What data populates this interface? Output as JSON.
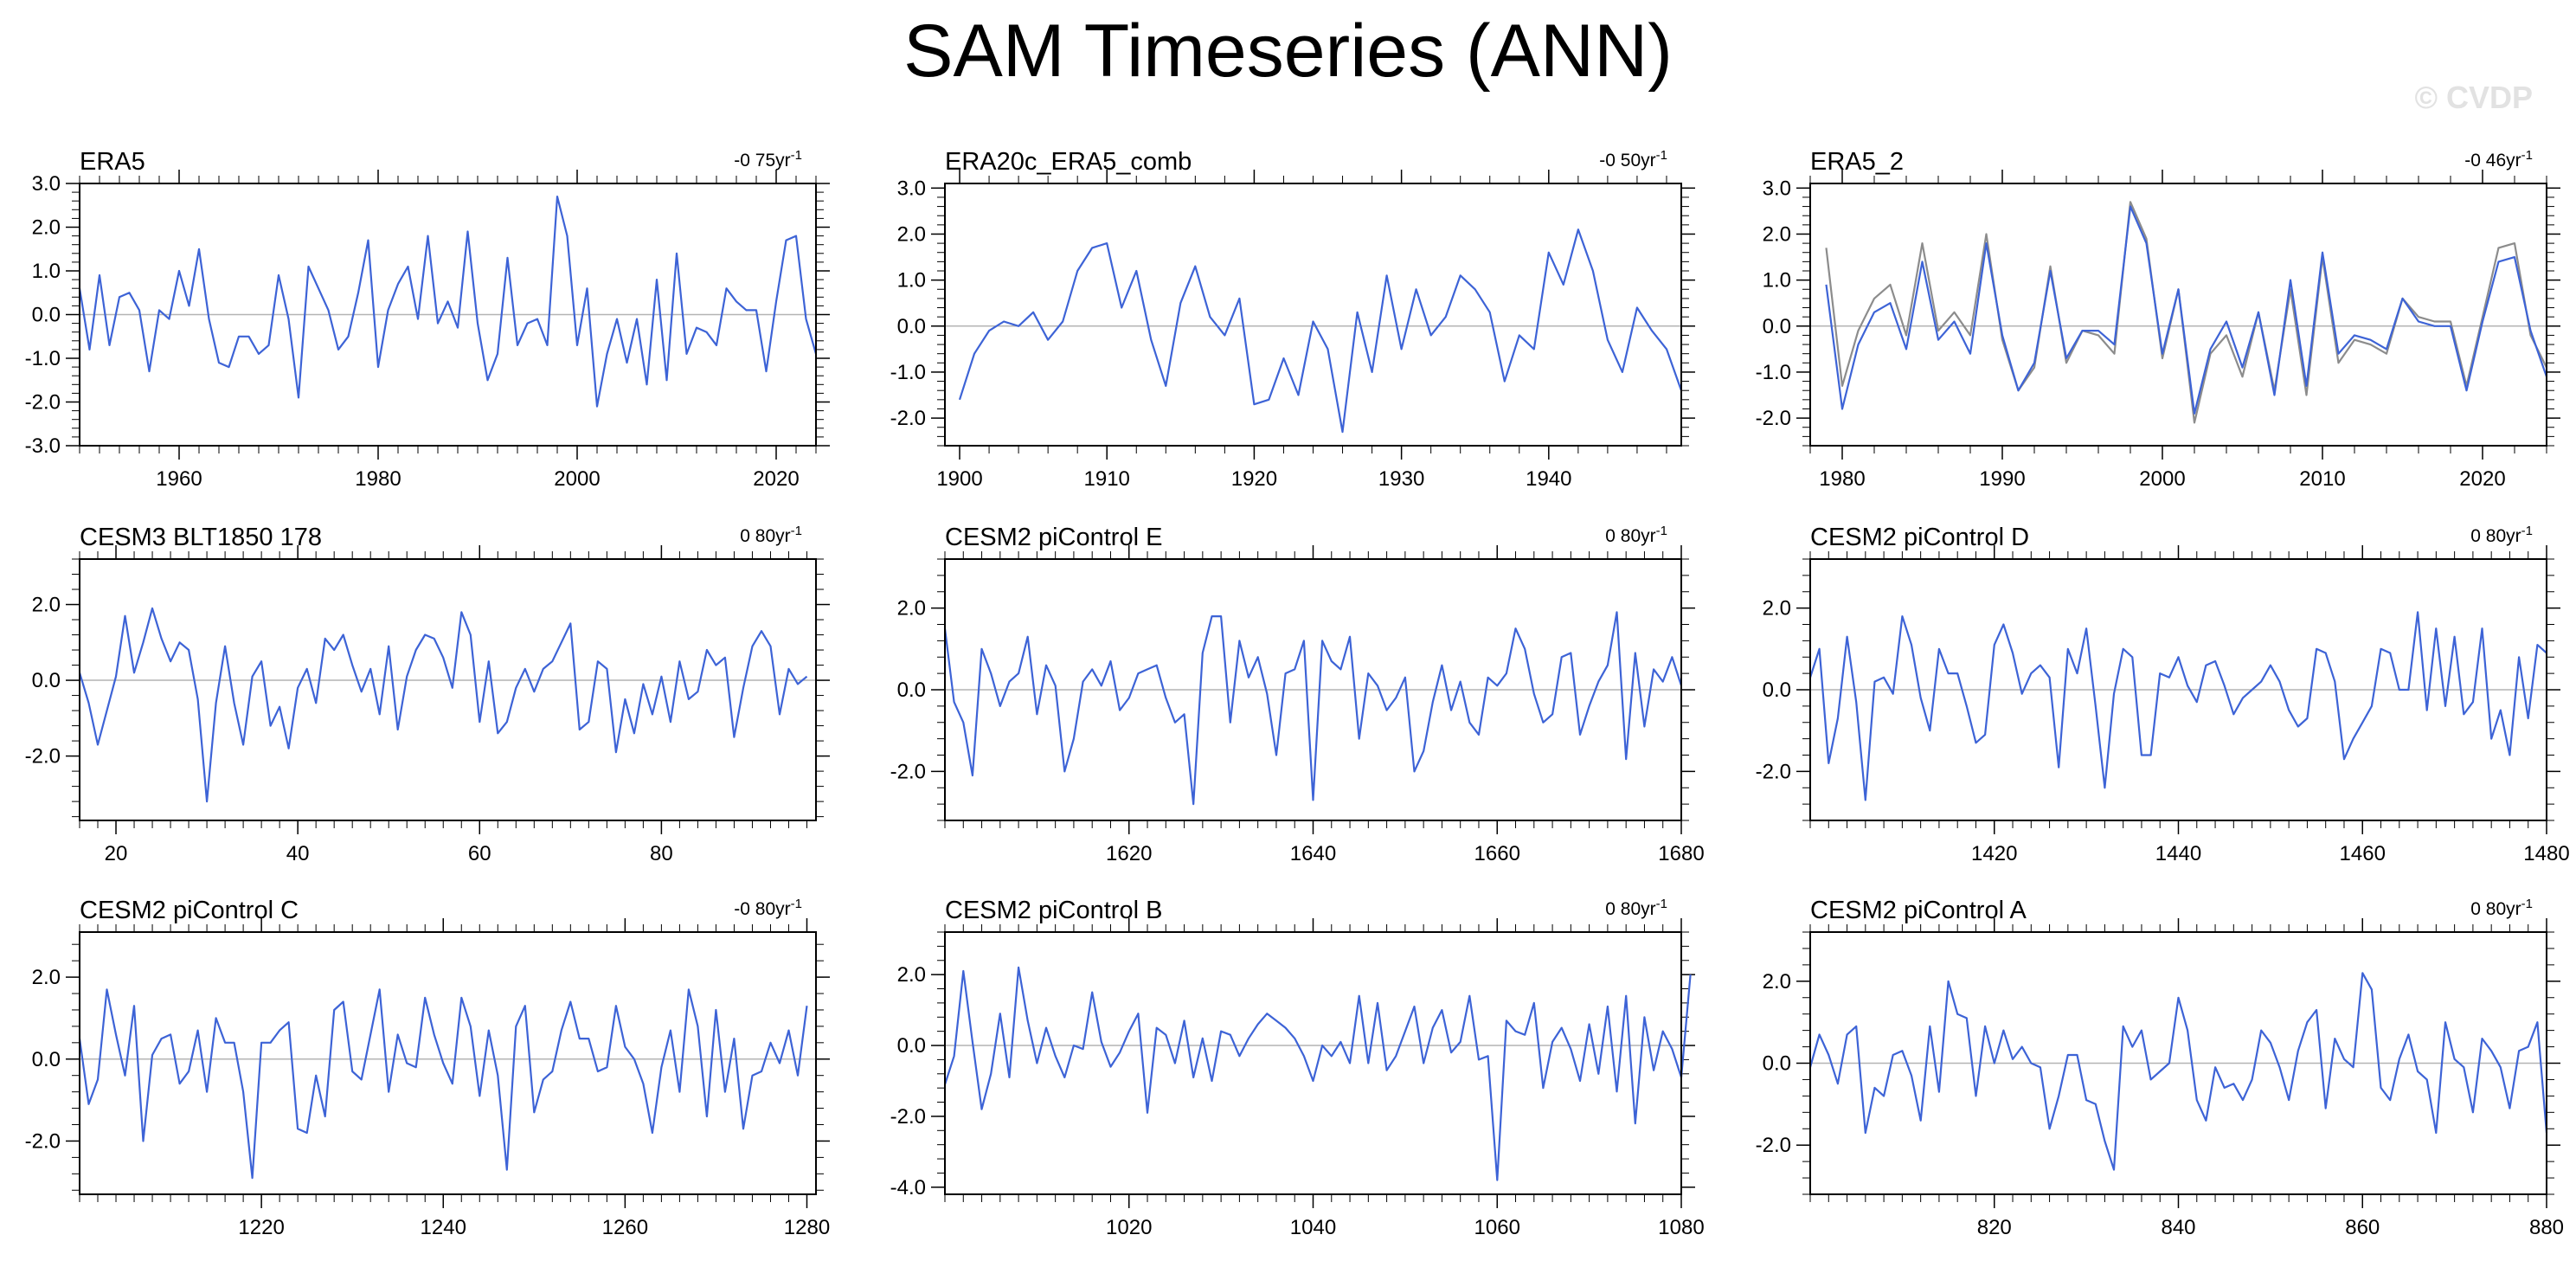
{
  "title": "SAM Timeseries (ANN)",
  "watermark": "© CVDP",
  "colors": {
    "series": "#3d63d6",
    "series2": "#8c8c8c",
    "zero_line": "#b4b4b4",
    "axis": "#000000"
  },
  "chart_data": [
    {
      "type": "line",
      "title": "ERA5",
      "trend": "-0 75yr",
      "xlim": [
        1950,
        2024
      ],
      "ylim": [
        -3,
        3
      ],
      "xticks": [
        1960,
        1980,
        2000,
        2020
      ],
      "yticks": [
        -3,
        -2,
        -1,
        0,
        1,
        2,
        3
      ],
      "ytick_labels": [
        "-3.0",
        "-2.0",
        "-1.0",
        "0.0",
        "1.0",
        "2.0",
        "3.0"
      ],
      "series": [
        {
          "x0": 1950,
          "values": [
            0.6,
            -0.8,
            0.9,
            -0.7,
            0.4,
            0.5,
            0.1,
            -1.3,
            0.1,
            -0.1,
            1.0,
            0.2,
            1.5,
            -0.1,
            -1.1,
            -1.2,
            -0.5,
            -0.5,
            -0.9,
            -0.7,
            0.9,
            -0.1,
            -1.9,
            1.1,
            0.6,
            0.1,
            -0.8,
            -0.5,
            0.5,
            1.7,
            -1.2,
            0.1,
            0.7,
            1.1,
            -0.1,
            1.8,
            -0.2,
            0.3,
            -0.3,
            1.9,
            -0.2,
            -1.5,
            -0.9,
            1.3,
            -0.7,
            -0.2,
            -0.1,
            -0.7,
            2.7,
            1.8,
            -0.7,
            0.6,
            -2.1,
            -0.9,
            -0.1,
            -1.1,
            -0.1,
            -1.6,
            0.8,
            -1.5,
            1.4,
            -0.9,
            -0.3,
            -0.4,
            -0.7,
            0.6,
            0.3,
            0.1,
            0.1,
            -1.3,
            0.3,
            1.7,
            1.8,
            -0.1,
            -0.9
          ]
        }
      ]
    },
    {
      "type": "line",
      "title": "ERA20c_ERA5_comb",
      "trend": "-0 50yr",
      "xlim": [
        1899,
        1949
      ],
      "ylim": [
        -2.6,
        3.1
      ],
      "xticks": [
        1900,
        1910,
        1920,
        1930,
        1940
      ],
      "yticks": [
        -2,
        -1,
        0,
        1,
        2,
        3
      ],
      "ytick_labels": [
        "-2.0",
        "-1.0",
        "0.0",
        "1.0",
        "2.0",
        "3.0"
      ],
      "series": [
        {
          "x0": 1900,
          "values": [
            -1.6,
            -0.6,
            -0.1,
            0.1,
            0.0,
            0.3,
            -0.3,
            0.1,
            1.2,
            1.7,
            1.8,
            0.4,
            1.2,
            -0.3,
            -1.3,
            0.5,
            1.3,
            0.2,
            -0.2,
            0.6,
            -1.7,
            -1.6,
            -0.7,
            -1.5,
            0.1,
            -0.5,
            -2.3,
            0.3,
            -1.0,
            1.1,
            -0.5,
            0.8,
            -0.2,
            0.2,
            1.1,
            0.8,
            0.3,
            -1.2,
            -0.2,
            -0.5,
            1.6,
            0.9,
            2.1,
            1.2,
            -0.3,
            -1.0,
            0.4,
            -0.1,
            -0.5,
            -1.4
          ]
        }
      ]
    },
    {
      "type": "line",
      "title": "ERA5_2",
      "trend": "-0 46yr",
      "xlim": [
        1978,
        2024
      ],
      "ylim": [
        -2.6,
        3.1
      ],
      "xticks": [
        1980,
        1990,
        2000,
        2010,
        2020
      ],
      "yticks": [
        -2,
        -1,
        0,
        1,
        2,
        3
      ],
      "ytick_labels": [
        "-2.0",
        "-1.0",
        "0.0",
        "1.0",
        "2.0",
        "3.0"
      ],
      "series": [
        {
          "x0": 1979,
          "values": [
            1.7,
            -1.3,
            -0.1,
            0.6,
            0.9,
            -0.2,
            1.8,
            -0.1,
            0.3,
            -0.2,
            2.0,
            -0.3,
            -1.4,
            -0.9,
            1.3,
            -0.8,
            -0.1,
            -0.2,
            -0.6,
            2.7,
            1.9,
            -0.7,
            0.8,
            -2.1,
            -0.6,
            -0.2,
            -1.1,
            0.3,
            -1.4,
            0.8,
            -1.5,
            1.5,
            -0.8,
            -0.3,
            -0.4,
            -0.6,
            0.6,
            0.2,
            0.1,
            0.1,
            -1.3,
            0.2,
            1.7,
            1.8,
            -0.2,
            -0.9
          ]
        },
        {
          "x0": 1979,
          "values": [
            0.9,
            -1.8,
            -0.4,
            0.3,
            0.5,
            -0.5,
            1.4,
            -0.3,
            0.1,
            -0.6,
            1.8,
            -0.2,
            -1.4,
            -0.8,
            1.2,
            -0.7,
            -0.1,
            -0.1,
            -0.4,
            2.6,
            1.8,
            -0.6,
            0.8,
            -1.9,
            -0.5,
            0.1,
            -0.9,
            0.3,
            -1.5,
            1.0,
            -1.3,
            1.6,
            -0.6,
            -0.2,
            -0.3,
            -0.5,
            0.6,
            0.1,
            0.0,
            0.0,
            -1.4,
            0.1,
            1.4,
            1.5,
            -0.1,
            -1.1
          ]
        }
      ]
    },
    {
      "type": "line",
      "title": "CESM3 BLT1850 178",
      "trend": "0 80yr",
      "xlim": [
        16,
        97
      ],
      "ylim": [
        -3.7,
        3.2
      ],
      "xticks": [
        20,
        40,
        60,
        80
      ],
      "yticks": [
        -2,
        0,
        2
      ],
      "ytick_labels": [
        "-2.0",
        "0.0",
        "2.0"
      ],
      "series": [
        {
          "x0": 16,
          "values": [
            0.2,
            -0.6,
            -1.7,
            -0.8,
            0.1,
            1.7,
            0.2,
            1.0,
            1.9,
            1.1,
            0.5,
            1.0,
            0.8,
            -0.5,
            -3.2,
            -0.6,
            0.9,
            -0.6,
            -1.7,
            0.1,
            0.5,
            -1.2,
            -0.7,
            -1.8,
            -0.2,
            0.3,
            -0.6,
            1.1,
            0.8,
            1.2,
            0.4,
            -0.3,
            0.3,
            -0.9,
            0.9,
            -1.3,
            0.1,
            0.8,
            1.2,
            1.1,
            0.6,
            -0.2,
            1.8,
            1.2,
            -1.1,
            0.5,
            -1.4,
            -1.1,
            -0.2,
            0.3,
            -0.3,
            0.3,
            0.5,
            1.0,
            1.5,
            -1.3,
            -1.1,
            0.5,
            0.3,
            -1.9,
            -0.5,
            -1.4,
            -0.1,
            -0.9,
            0.1,
            -1.1,
            0.5,
            -0.5,
            -0.3,
            0.8,
            0.4,
            0.6,
            -1.5,
            -0.2,
            0.9,
            1.3,
            0.9,
            -0.9,
            0.3,
            -0.1,
            0.1
          ]
        }
      ]
    },
    {
      "type": "line",
      "title": "CESM2 piControl E",
      "trend": "0 80yr",
      "xlim": [
        1600,
        1680
      ],
      "ylim": [
        -3.2,
        3.2
      ],
      "xticks": [
        1620,
        1640,
        1660,
        1680
      ],
      "yticks": [
        -2,
        0,
        2
      ],
      "ytick_labels": [
        "-2.0",
        "0.0",
        "2.0"
      ],
      "series": [
        {
          "x0": 1600,
          "values": [
            1.5,
            -0.3,
            -0.8,
            -2.1,
            1.0,
            0.4,
            -0.4,
            0.2,
            0.4,
            1.3,
            -0.6,
            0.6,
            0.1,
            -2.0,
            -1.2,
            0.2,
            0.5,
            0.1,
            0.7,
            -0.5,
            -0.2,
            0.4,
            0.5,
            0.6,
            -0.2,
            -0.8,
            -0.6,
            -2.8,
            0.9,
            1.8,
            1.8,
            -0.8,
            1.2,
            0.3,
            0.8,
            -0.1,
            -1.6,
            0.4,
            0.5,
            1.2,
            -2.7,
            1.2,
            0.7,
            0.5,
            1.3,
            -1.2,
            0.4,
            0.1,
            -0.5,
            -0.2,
            0.3,
            -2.0,
            -1.5,
            -0.3,
            0.6,
            -0.5,
            0.2,
            -0.8,
            -1.1,
            0.3,
            0.1,
            0.4,
            1.5,
            1.0,
            -0.1,
            -0.8,
            -0.6,
            0.8,
            0.9,
            -1.1,
            -0.4,
            0.2,
            0.6,
            1.9,
            -1.7,
            0.9,
            -0.9,
            0.5,
            0.2,
            0.8,
            0.1
          ]
        }
      ]
    },
    {
      "type": "line",
      "title": "CESM2 piControl D",
      "trend": "0 80yr",
      "xlim": [
        1400,
        1480
      ],
      "ylim": [
        -3.2,
        3.2
      ],
      "xticks": [
        1420,
        1440,
        1460,
        1480
      ],
      "yticks": [
        -2,
        0,
        2
      ],
      "ytick_labels": [
        "-2.0",
        "0.0",
        "2.0"
      ],
      "series": [
        {
          "x0": 1400,
          "values": [
            0.3,
            1.0,
            -1.8,
            -0.7,
            1.3,
            -0.3,
            -2.7,
            0.2,
            0.3,
            -0.1,
            1.8,
            1.1,
            -0.2,
            -1.0,
            1.0,
            0.4,
            0.4,
            -0.4,
            -1.3,
            -1.1,
            1.1,
            1.6,
            0.9,
            -0.1,
            0.4,
            0.6,
            0.3,
            -1.9,
            1.0,
            0.4,
            1.5,
            -0.4,
            -2.4,
            -0.1,
            1.0,
            0.8,
            -1.6,
            -1.6,
            0.4,
            0.3,
            0.8,
            0.1,
            -0.3,
            0.6,
            0.7,
            0.1,
            -0.6,
            -0.2,
            0.0,
            0.2,
            0.6,
            0.2,
            -0.5,
            -0.9,
            -0.7,
            1.0,
            0.9,
            0.2,
            -1.7,
            -1.2,
            -0.8,
            -0.4,
            1.0,
            0.9,
            0.0,
            0.0,
            1.9,
            -0.5,
            1.5,
            -0.4,
            1.3,
            -0.6,
            -0.3,
            1.5,
            -1.2,
            -0.5,
            -1.6,
            0.8,
            -0.7,
            1.1,
            0.9
          ]
        }
      ]
    },
    {
      "type": "line",
      "title": "CESM2 piControl C",
      "trend": "-0 80yr",
      "xlim": [
        1200,
        1281
      ],
      "ylim": [
        -3.3,
        3.1
      ],
      "xticks": [
        1220,
        1240,
        1260,
        1280
      ],
      "yticks": [
        -2,
        0,
        2
      ],
      "ytick_labels": [
        "-2.0",
        "0.0",
        "2.0"
      ],
      "series": [
        {
          "x0": 1200,
          "values": [
            0.5,
            -1.1,
            -0.5,
            1.7,
            0.6,
            -0.4,
            1.3,
            -2.0,
            0.1,
            0.5,
            0.6,
            -0.6,
            -0.3,
            0.7,
            -0.8,
            1.0,
            0.4,
            0.4,
            -0.8,
            -2.9,
            0.4,
            0.4,
            0.7,
            0.9,
            -1.7,
            -1.8,
            -0.4,
            -1.4,
            1.2,
            1.4,
            -0.3,
            -0.5,
            0.6,
            1.7,
            -0.8,
            0.6,
            -0.1,
            -0.2,
            1.5,
            0.6,
            -0.1,
            -0.6,
            1.5,
            0.8,
            -0.9,
            0.7,
            -0.4,
            -2.7,
            0.8,
            1.3,
            -1.3,
            -0.5,
            -0.3,
            0.7,
            1.4,
            0.5,
            0.5,
            -0.3,
            -0.2,
            1.3,
            0.3,
            0.0,
            -0.6,
            -1.8,
            -0.2,
            0.7,
            -0.8,
            1.7,
            0.8,
            -1.4,
            1.2,
            -0.8,
            0.5,
            -1.7,
            -0.4,
            -0.3,
            0.4,
            -0.1,
            0.7,
            -0.4,
            1.3
          ]
        }
      ]
    },
    {
      "type": "line",
      "title": "CESM2 piControl B",
      "trend": "0 80yr",
      "xlim": [
        1000,
        1080
      ],
      "ylim": [
        -4.2,
        3.2
      ],
      "xticks": [
        1020,
        1040,
        1060,
        1080
      ],
      "yticks": [
        -4,
        -2,
        0,
        2
      ],
      "ytick_labels": [
        "-4.0",
        "-2.0",
        "0.0",
        "2.0"
      ],
      "series": [
        {
          "x0": 1000,
          "values": [
            -1.1,
            -0.3,
            2.1,
            0.1,
            -1.8,
            -0.8,
            0.9,
            -0.9,
            2.2,
            0.7,
            -0.5,
            0.5,
            -0.3,
            -0.9,
            0.0,
            -0.1,
            1.5,
            0.1,
            -0.6,
            -0.2,
            0.4,
            0.9,
            -1.9,
            0.5,
            0.3,
            -0.5,
            0.7,
            -0.9,
            0.2,
            -1.0,
            0.4,
            0.3,
            -0.3,
            0.2,
            0.6,
            0.9,
            0.7,
            0.5,
            0.2,
            -0.3,
            -1.0,
            0.0,
            -0.3,
            0.1,
            -0.5,
            1.4,
            -0.5,
            1.2,
            -0.7,
            -0.3,
            0.4,
            1.1,
            -0.5,
            0.5,
            1.0,
            -0.2,
            0.1,
            1.4,
            -0.4,
            -0.3,
            -3.8,
            0.7,
            0.4,
            0.3,
            1.2,
            -1.2,
            0.1,
            0.5,
            -0.1,
            -1.0,
            0.6,
            -0.8,
            1.1,
            -1.3,
            1.4,
            -2.2,
            0.8,
            -0.7,
            0.4,
            -0.1,
            -0.9,
            2.0
          ]
        }
      ]
    },
    {
      "type": "line",
      "title": "CESM2 piControl A",
      "trend": "0 80yr",
      "xlim": [
        800,
        880
      ],
      "ylim": [
        -3.2,
        3.2
      ],
      "xticks": [
        820,
        840,
        860,
        880
      ],
      "yticks": [
        -2,
        0,
        2
      ],
      "ytick_labels": [
        "-2.0",
        "0.0",
        "2.0"
      ],
      "series": [
        {
          "x0": 800,
          "values": [
            -0.1,
            0.7,
            0.2,
            -0.5,
            0.7,
            0.9,
            -1.7,
            -0.6,
            -0.8,
            0.2,
            0.3,
            -0.3,
            -1.4,
            0.9,
            -0.7,
            2.0,
            1.2,
            1.1,
            -0.8,
            0.9,
            0.0,
            0.8,
            0.1,
            0.4,
            0.0,
            -0.1,
            -1.6,
            -0.8,
            0.2,
            0.2,
            -0.9,
            -1.0,
            -1.9,
            -2.6,
            0.9,
            0.4,
            0.8,
            -0.4,
            -0.2,
            0.0,
            1.6,
            0.8,
            -0.9,
            -1.4,
            -0.1,
            -0.6,
            -0.5,
            -0.9,
            -0.4,
            0.8,
            0.5,
            -0.1,
            -0.9,
            0.3,
            1.0,
            1.3,
            -1.1,
            0.6,
            0.1,
            -0.1,
            2.2,
            1.8,
            -0.6,
            -0.9,
            0.1,
            0.7,
            -0.2,
            -0.4,
            -1.7,
            1.0,
            0.1,
            -0.1,
            -1.2,
            0.6,
            0.3,
            -0.1,
            -1.1,
            0.3,
            0.4,
            1.0,
            -1.7
          ]
        }
      ]
    }
  ]
}
